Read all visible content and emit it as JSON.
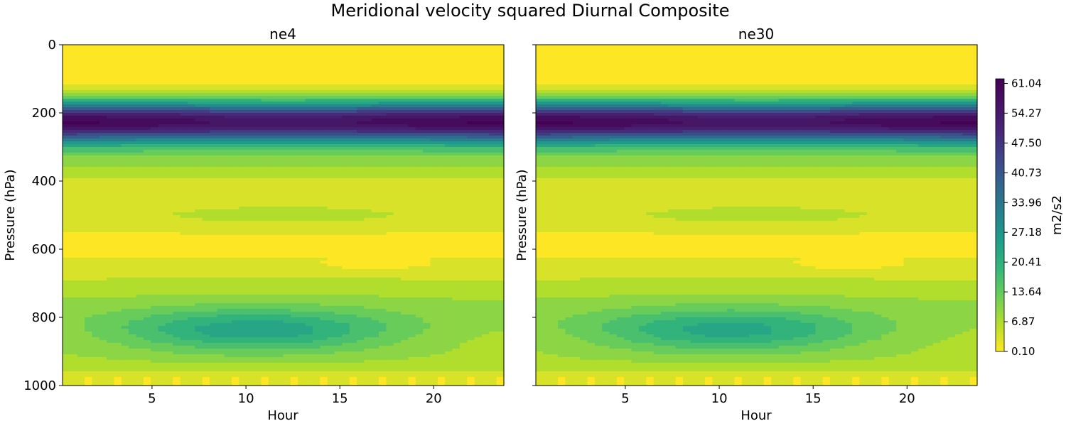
{
  "figure": {
    "title": "Meridional velocity squared Diurnal Composite"
  },
  "colorbar": {
    "label": "m2/s2",
    "ticks": [
      "61.04",
      "54.27",
      "47.50",
      "40.73",
      "33.96",
      "27.18",
      "20.41",
      "13.64",
      "6.87",
      "0.10"
    ]
  },
  "chart_data": [
    {
      "type": "heatmap",
      "subtype": "filled-contour",
      "title": "ne4",
      "xlabel": "Hour",
      "ylabel": "Pressure (hPa)",
      "xlim": [
        0.25,
        23.75
      ],
      "ylim": [
        1000,
        0
      ],
      "xticks": [
        "5",
        "10",
        "15",
        "20"
      ],
      "yticks": [
        "0",
        "200",
        "400",
        "600",
        "800",
        "1000"
      ],
      "value_range": [
        0.1,
        64.0
      ],
      "colormap": "viridis_r",
      "jet_max": {
        "pressure": 225,
        "value": 63
      },
      "low_level_max": {
        "hour": 7.5,
        "pressure": 840,
        "value": 29
      },
      "local_min": {
        "hour": 17,
        "pressure": 645,
        "value": 4
      }
    },
    {
      "type": "heatmap",
      "subtype": "filled-contour",
      "title": "ne30",
      "xlabel": "Hour",
      "ylabel": "Pressure (hPa)",
      "xlim": [
        0.25,
        23.75
      ],
      "ylim": [
        1000,
        0
      ],
      "xticks": [
        "5",
        "10",
        "15",
        "20"
      ],
      "yticks": [],
      "value_range": [
        0.1,
        64.0
      ],
      "colormap": "viridis_r",
      "jet_max": {
        "pressure": 225,
        "value": 63
      },
      "low_level_max": {
        "hour": 7.5,
        "pressure": 840,
        "value": 28
      },
      "local_min": {
        "hour": 17,
        "pressure": 645,
        "value": 4
      }
    }
  ]
}
